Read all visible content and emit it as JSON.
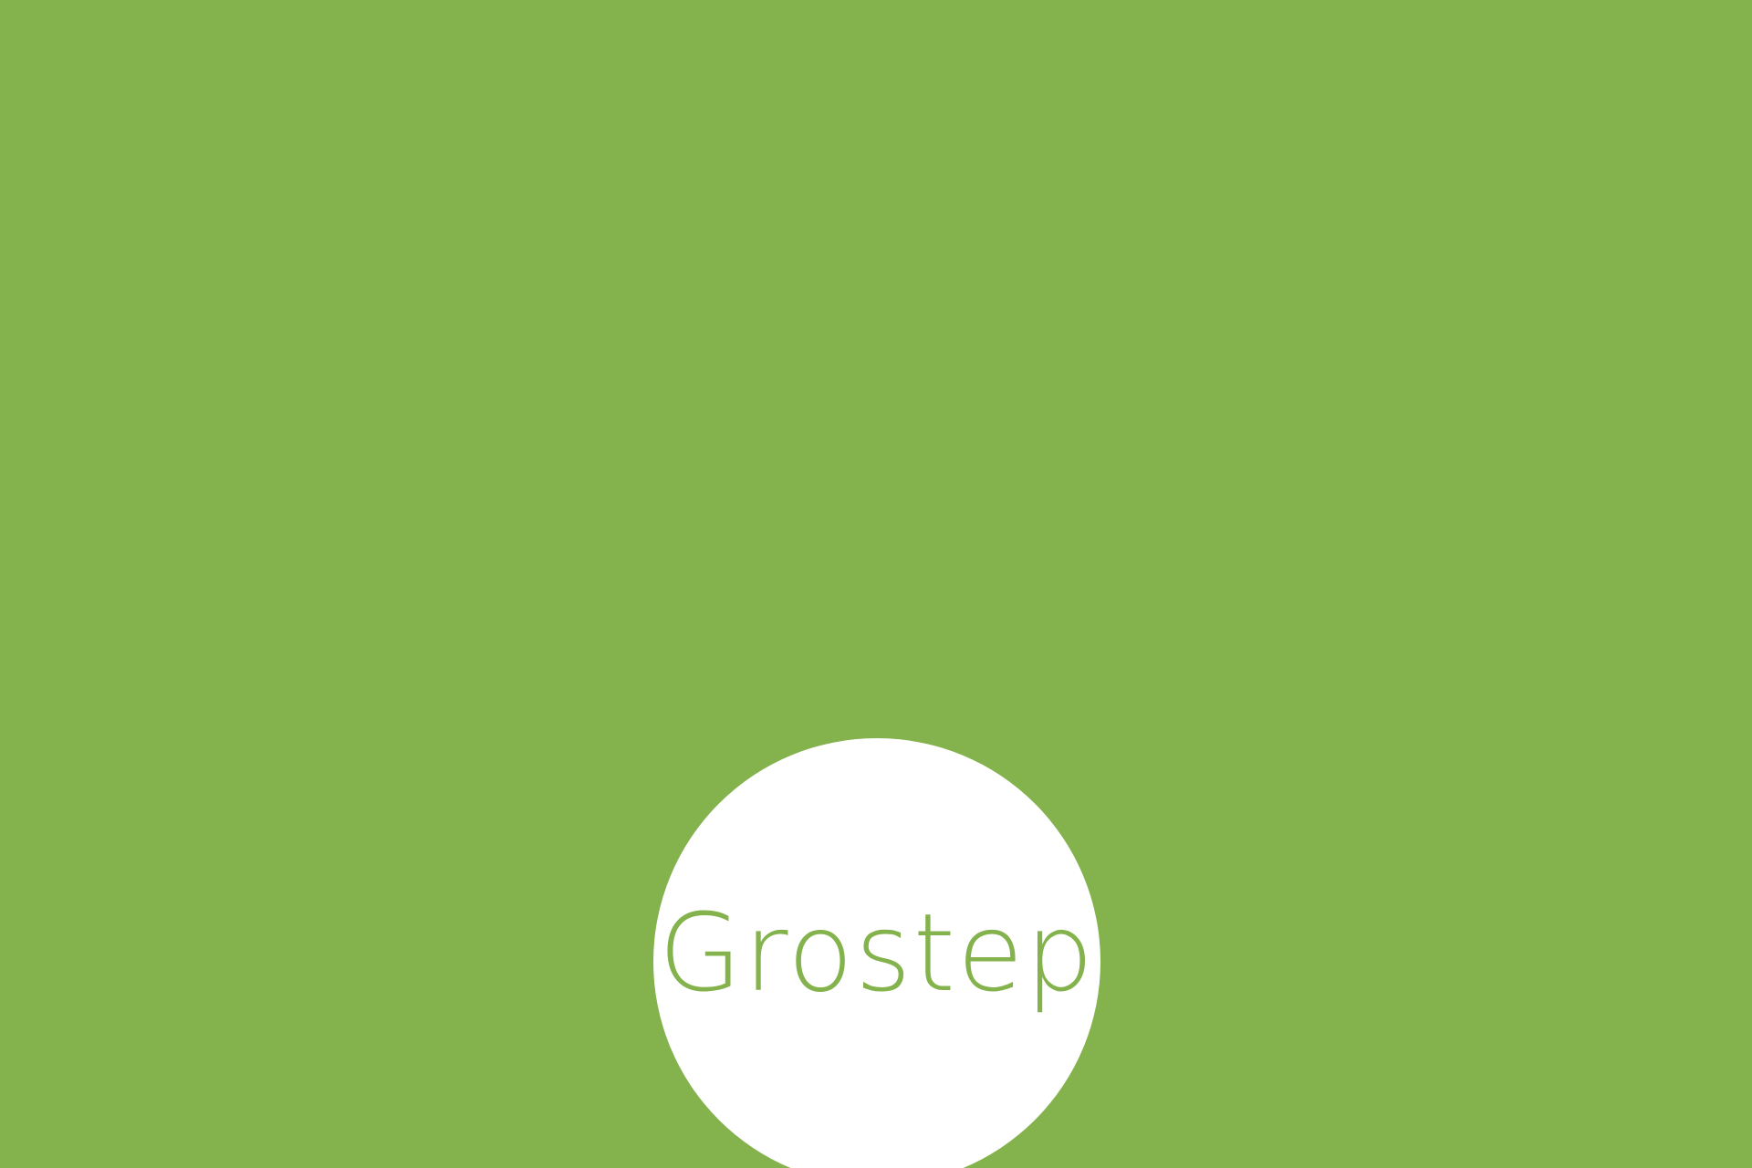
{
  "brand": {
    "name": "Grostep"
  },
  "colors": {
    "background": "#84b24c",
    "circle": "#ffffff",
    "wordmark": "#84b24c"
  }
}
